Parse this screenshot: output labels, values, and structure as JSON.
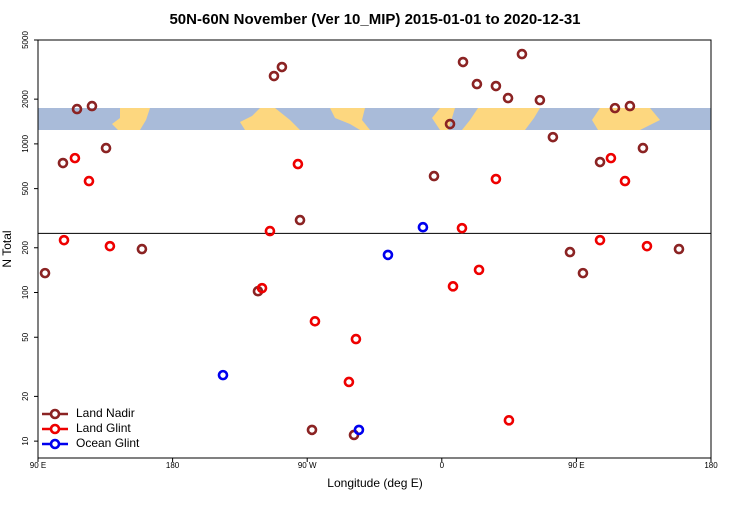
{
  "chart_data": {
    "type": "scatter",
    "title": "50N-60N November (Ver 10_MIP)   2015-01-01 to 2020-12-31",
    "x_label": "Longitude (deg E)",
    "y_label": "N Total",
    "log_y": true,
    "xlim": [
      90,
      540
    ],
    "ylim": [
      7.7,
      5000
    ],
    "xticks": [
      {
        "value": 90,
        "label": "90 E"
      },
      {
        "value": 180,
        "label": "180"
      },
      {
        "value": 270,
        "label": "90 W"
      },
      {
        "value": 360,
        "label": "0"
      },
      {
        "value": 450,
        "label": "90 E"
      },
      {
        "value": 540,
        "label": "180"
      }
    ],
    "yticks": [
      10,
      20,
      50,
      100,
      200,
      500,
      1000,
      2000,
      5000
    ],
    "hline": 250,
    "legend": "lower left",
    "series": [
      {
        "name": "Land Nadir",
        "color": "#8b2323",
        "x": [
          94.7,
          106.7,
          116.1,
          126.1,
          135.5,
          159.5,
          237.1,
          247.8,
          253.1,
          265.2,
          273.2,
          301.3,
          354.8,
          365.5,
          374.2,
          383.5,
          396.2,
          404.3,
          413.6,
          425.6,
          434.3,
          445.7,
          454.4,
          465.8,
          475.8,
          485.8,
          494.5,
          518.6
        ],
        "values": [
          135,
          743,
          1715,
          1796,
          937,
          196,
          102,
          2860,
          3290,
          307,
          11.9,
          11,
          607,
          1360,
          3555,
          2525,
          2450,
          2033,
          4020,
          1970,
          1110,
          187,
          135,
          755,
          1740,
          1796,
          937,
          196
        ]
      },
      {
        "name": "Land Glint",
        "color": "#ee0000",
        "x": [
          107.4,
          114.7,
          124.1,
          138.1,
          239.8,
          245.1,
          263.8,
          275.2,
          297.9,
          302.6,
          367.5,
          373.5,
          384.9,
          396.2,
          404.9,
          465.8,
          473.1,
          482.5,
          497.2
        ],
        "values": [
          225,
          802,
          562,
          205,
          107,
          259,
          731,
          64,
          25,
          48.6,
          110,
          271,
          142,
          580,
          13.8,
          225,
          802,
          562,
          205
        ]
      },
      {
        "name": "Ocean Glint",
        "color": "#0000ee",
        "x": [
          213.7,
          304.6,
          324,
          347.4
        ],
        "values": [
          27.8,
          11.9,
          179,
          275
        ]
      }
    ]
  }
}
